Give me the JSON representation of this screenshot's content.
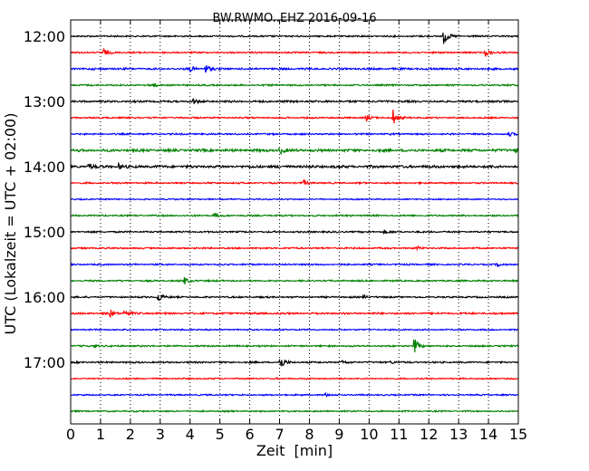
{
  "chart_data": {
    "type": "line",
    "title": "BW.RWMO..EHZ 2016-09-16",
    "xlabel": "Zeit  [min]",
    "ylabel": "UTC (Lokalzeit = UTC + 02:00)",
    "xlim": [
      0,
      15
    ],
    "x_ticks": [
      "0",
      "1",
      "2",
      "3",
      "4",
      "5",
      "6",
      "7",
      "8",
      "9",
      "10",
      "11",
      "12",
      "13",
      "14",
      "15"
    ],
    "y_tick_labels": [
      "12:00",
      "13:00",
      "14:00",
      "15:00",
      "16:00",
      "17:00"
    ],
    "grid": "vertical dotted",
    "trace_colors": [
      "#000000",
      "#ff0000",
      "#0000ff",
      "#008000"
    ],
    "traces": [
      {
        "label": "12:00",
        "color": "#000000",
        "amp": 1.0,
        "events": [
          {
            "t": 12.5,
            "a": 9
          }
        ]
      },
      {
        "label": "12:15",
        "color": "#ff0000",
        "amp": 1.0,
        "events": [
          {
            "t": 1.1,
            "a": 4
          },
          {
            "t": 13.9,
            "a": 4
          }
        ]
      },
      {
        "label": "12:30",
        "color": "#0000ff",
        "amp": 1.2,
        "events": [
          {
            "t": 4.0,
            "a": 3
          },
          {
            "t": 4.5,
            "a": 6
          }
        ]
      },
      {
        "label": "12:45",
        "color": "#008000",
        "amp": 1.0,
        "events": [
          {
            "t": 2.7,
            "a": 4
          }
        ]
      },
      {
        "label": "13:00",
        "color": "#000000",
        "amp": 1.2,
        "events": [
          {
            "t": 4.1,
            "a": 3
          }
        ]
      },
      {
        "label": "13:15",
        "color": "#ff0000",
        "amp": 1.0,
        "events": [
          {
            "t": 10.8,
            "a": 9
          },
          {
            "t": 9.9,
            "a": 3
          }
        ]
      },
      {
        "label": "13:30",
        "color": "#0000ff",
        "amp": 1.0,
        "events": [
          {
            "t": 14.7,
            "a": 2
          }
        ]
      },
      {
        "label": "13:45",
        "color": "#008000",
        "amp": 1.6,
        "events": [
          {
            "t": 7.0,
            "a": 4
          },
          {
            "t": 14.9,
            "a": 4
          }
        ]
      },
      {
        "label": "14:00",
        "color": "#000000",
        "amp": 1.6,
        "events": [
          {
            "t": 0.6,
            "a": 3
          },
          {
            "t": 1.6,
            "a": 3
          }
        ]
      },
      {
        "label": "14:15",
        "color": "#ff0000",
        "amp": 1.0,
        "events": [
          {
            "t": 7.8,
            "a": 3
          }
        ]
      },
      {
        "label": "14:30",
        "color": "#0000ff",
        "amp": 0.8,
        "events": []
      },
      {
        "label": "14:45",
        "color": "#008000",
        "amp": 1.0,
        "events": [
          {
            "t": 4.8,
            "a": 2
          }
        ]
      },
      {
        "label": "15:00",
        "color": "#000000",
        "amp": 1.0,
        "events": [
          {
            "t": 10.5,
            "a": 2
          }
        ]
      },
      {
        "label": "15:15",
        "color": "#ff0000",
        "amp": 1.0,
        "events": [
          {
            "t": 11.6,
            "a": 2
          }
        ]
      },
      {
        "label": "15:30",
        "color": "#0000ff",
        "amp": 1.0,
        "events": [
          {
            "t": 14.3,
            "a": 2
          }
        ]
      },
      {
        "label": "15:45",
        "color": "#008000",
        "amp": 1.0,
        "events": [
          {
            "t": 3.8,
            "a": 4
          }
        ]
      },
      {
        "label": "16:00",
        "color": "#000000",
        "amp": 1.0,
        "events": [
          {
            "t": 2.9,
            "a": 8
          },
          {
            "t": 9.8,
            "a": 2
          }
        ]
      },
      {
        "label": "16:15",
        "color": "#ff0000",
        "amp": 1.2,
        "events": [
          {
            "t": 1.3,
            "a": 5
          },
          {
            "t": 1.8,
            "a": 4
          }
        ]
      },
      {
        "label": "16:30",
        "color": "#0000ff",
        "amp": 0.9,
        "events": []
      },
      {
        "label": "16:45",
        "color": "#008000",
        "amp": 1.0,
        "events": [
          {
            "t": 11.5,
            "a": 10
          },
          {
            "t": 0.8,
            "a": 2
          }
        ]
      },
      {
        "label": "17:00",
        "color": "#000000",
        "amp": 1.0,
        "events": [
          {
            "t": 7.0,
            "a": 9
          },
          {
            "t": 9.1,
            "a": 2
          },
          {
            "t": 10.7,
            "a": 2
          }
        ]
      },
      {
        "label": "17:15",
        "color": "#ff0000",
        "amp": 0.9,
        "events": []
      },
      {
        "label": "17:30",
        "color": "#0000ff",
        "amp": 0.9,
        "events": [
          {
            "t": 8.5,
            "a": 2
          }
        ]
      },
      {
        "label": "17:45",
        "color": "#008000",
        "amp": 0.9,
        "events": []
      }
    ]
  }
}
